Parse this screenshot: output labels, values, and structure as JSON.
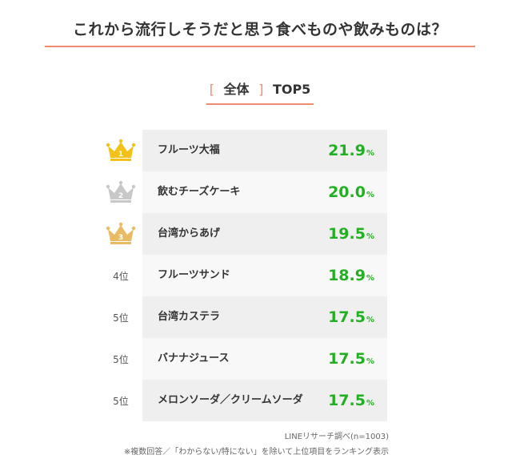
{
  "title": "これから流行しそうだと思う食べものや飲みものは？",
  "subtitle": {
    "open": "[",
    "label": "全体",
    "close": "]",
    "top": "TOP5"
  },
  "colors": {
    "accent": "#f08a6b",
    "value": "#22b022",
    "gold": "#f2c21a",
    "silver": "#c8c8c8",
    "bronze": "#e9bb63"
  },
  "chart_data": {
    "type": "table",
    "title": "これから流行しそうだと思う食べものや飲みものは？",
    "unit": "%",
    "rows": [
      {
        "rank": "1",
        "icon": "gold-crown-icon",
        "item": "フルーツ大福",
        "value": 21.9,
        "value_text": "21.9"
      },
      {
        "rank": "2",
        "icon": "silver-crown-icon",
        "item": "飲むチーズケーキ",
        "value": 20.0,
        "value_text": "20.0"
      },
      {
        "rank": "3",
        "icon": "bronze-crown-icon",
        "item": "台湾からあげ",
        "value": 19.5,
        "value_text": "19.5"
      },
      {
        "rank": "4位",
        "icon": "",
        "item": "フルーツサンド",
        "value": 18.9,
        "value_text": "18.9"
      },
      {
        "rank": "5位",
        "icon": "",
        "item": "台湾カステラ",
        "value": 17.5,
        "value_text": "17.5"
      },
      {
        "rank": "5位",
        "icon": "",
        "item": "バナナジュース",
        "value": 17.5,
        "value_text": "17.5"
      },
      {
        "rank": "5位",
        "icon": "",
        "item": "メロンソーダ／クリームソーダ",
        "value": 17.5,
        "value_text": "17.5"
      }
    ]
  },
  "notes": {
    "source": "LINEリサーチ調べ(n=1003)",
    "footnote": "※複数回答／「わからない/特にない」を除いて上位項目をランキング表示"
  }
}
